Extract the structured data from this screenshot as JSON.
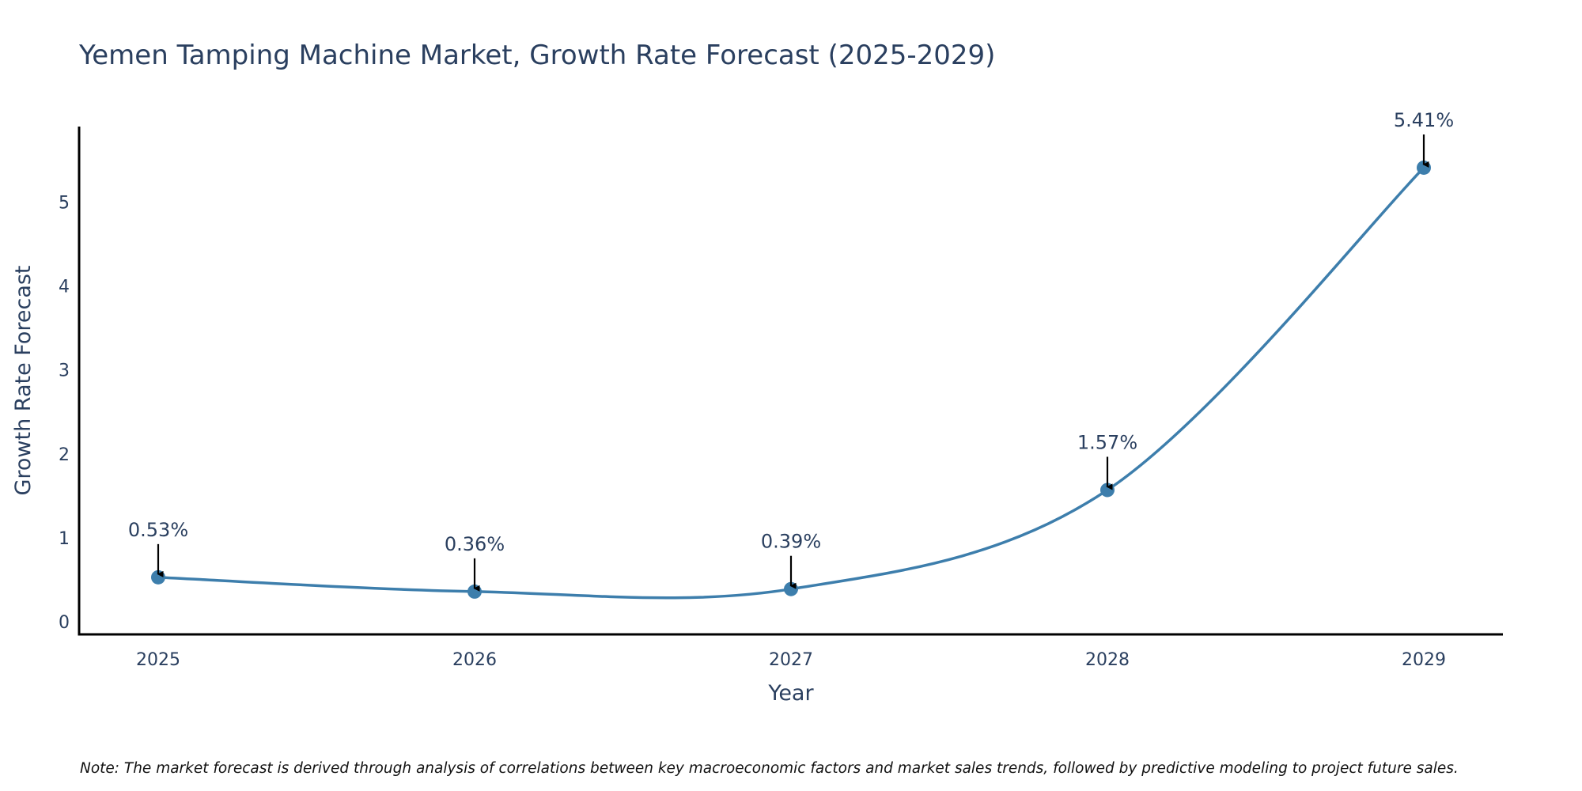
{
  "chart_data": {
    "type": "line",
    "title": "Yemen Tamping Machine Market, Growth Rate Forecast (2025-2029)",
    "xlabel": "Year",
    "ylabel": "Growth Rate Forecast",
    "categories": [
      "2025",
      "2026",
      "2027",
      "2028",
      "2029"
    ],
    "series": [
      {
        "name": "Growth Rate Forecast",
        "values": [
          0.53,
          0.36,
          0.39,
          1.57,
          5.41
        ],
        "labels": [
          "0.53%",
          "0.36%",
          "0.39%",
          "1.57%",
          "5.41%"
        ],
        "color": "#3d7eac",
        "line_shape": "spline",
        "markers": true
      }
    ],
    "xlim": [
      2024.75,
      2029.25
    ],
    "ylim": [
      -0.15,
      5.9
    ],
    "yticks": [
      0,
      1,
      2,
      3,
      4,
      5
    ],
    "grid": false,
    "legend": "none",
    "annotation_arrow_color": "#000000",
    "note": "Note: The market forecast is derived through analysis of correlations between key macroeconomic factors and market sales trends, followed by predictive modeling to project future sales."
  }
}
